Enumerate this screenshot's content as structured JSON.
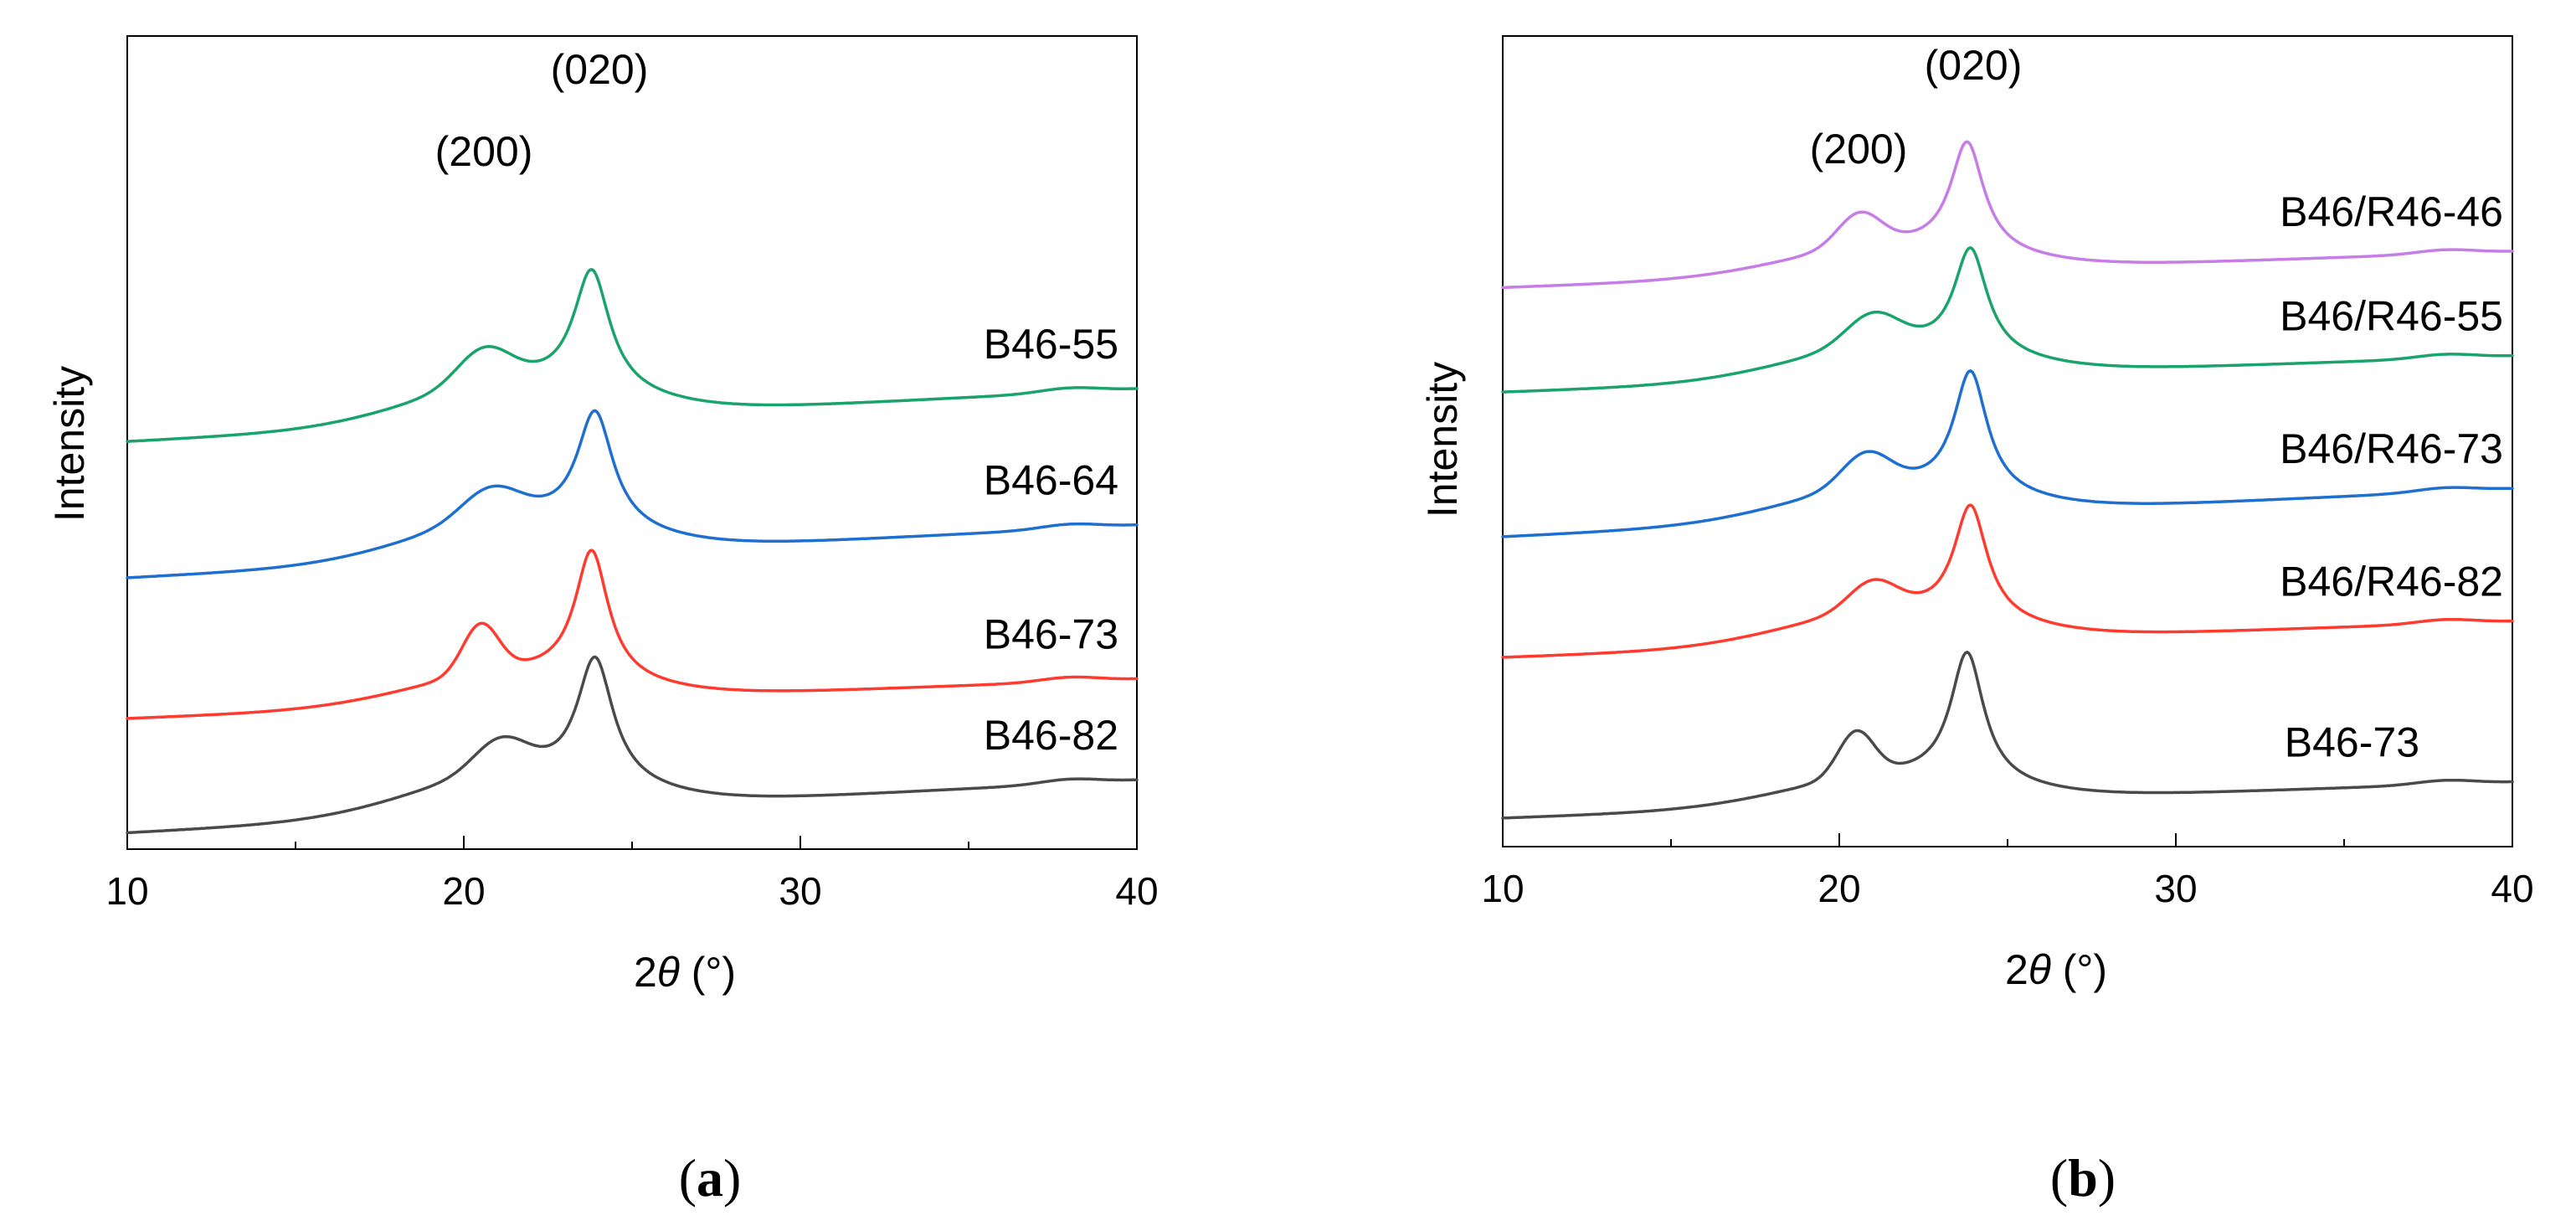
{
  "chart_data": [
    {
      "type": "line",
      "panel_label": "a",
      "xlabel_symbol": "θ",
      "xlabel": "2θ (°)",
      "xlabel_prefix": "2",
      "xlabel_suffix": " (°)",
      "ylabel": "Intensity",
      "xlim": [
        10,
        40
      ],
      "xticks": [
        10,
        20,
        30,
        40
      ],
      "xtick_labels": [
        "10",
        "20",
        "30",
        "40"
      ],
      "grid": false,
      "annotations": [
        {
          "text": "(020)",
          "x": 23.9
        },
        {
          "text": "(200)",
          "x": 20.8
        }
      ],
      "series": [
        {
          "name": "B46-55",
          "color": "#1aa36b",
          "offset": 4.1,
          "base": 0.0,
          "slope": 0.002,
          "p200": 0.38,
          "p200x": 20.6,
          "w200": 1.1,
          "p020": 1.35,
          "p020x": 23.8,
          "w020": 0.65,
          "amorph": 0.45
        },
        {
          "name": "B46-64",
          "color": "#1f6fd1",
          "offset": 2.55,
          "base": 0.0,
          "slope": 0.002,
          "p200": 0.33,
          "p200x": 20.8,
          "w200": 1.2,
          "p020": 1.3,
          "p020x": 23.9,
          "w020": 0.65,
          "amorph": 0.45
        },
        {
          "name": "B46-73",
          "color": "#ff3b30",
          "offset": 0.95,
          "base": 0.0,
          "slope": 0.0015,
          "p200": 0.55,
          "p200x": 20.5,
          "w200": 0.75,
          "p020": 1.45,
          "p020x": 23.8,
          "w020": 0.6,
          "amorph": 0.35
        },
        {
          "name": "B46-82",
          "color": "#4a4a4a",
          "offset": -0.35,
          "base": 0.0,
          "slope": 0.002,
          "p200": 0.35,
          "p200x": 21.1,
          "w200": 1.1,
          "p020": 1.4,
          "p020x": 23.9,
          "w020": 0.65,
          "amorph": 0.45
        }
      ]
    },
    {
      "type": "line",
      "panel_label": "b",
      "xlabel_symbol": "θ",
      "xlabel": "2θ (°)",
      "xlabel_prefix": "2",
      "xlabel_suffix": " (°)",
      "ylabel": "Intensity",
      "xlim": [
        10,
        40
      ],
      "xticks": [
        10,
        20,
        30,
        40
      ],
      "xtick_labels": [
        "10",
        "20",
        "30",
        "40"
      ],
      "grid": false,
      "annotations": [
        {
          "text": "(020)",
          "x": 23.9
        },
        {
          "text": "(200)",
          "x": 20.8
        }
      ],
      "series": [
        {
          "name": "B46/R46-46",
          "color": "#c77de6",
          "offset": 5.15,
          "base": 0.0,
          "slope": 0.0015,
          "p200": 0.4,
          "p200x": 20.6,
          "w200": 0.9,
          "p020": 1.35,
          "p020x": 23.8,
          "w020": 0.6,
          "amorph": 0.35
        },
        {
          "name": "B46/R46-55",
          "color": "#1aa36b",
          "offset": 3.85,
          "base": 0.0,
          "slope": 0.0015,
          "p200": 0.38,
          "p200x": 21.0,
          "w200": 1.1,
          "p020": 1.3,
          "p020x": 23.9,
          "w020": 0.6,
          "amorph": 0.4
        },
        {
          "name": "B46/R46-73",
          "color": "#1f6fd1",
          "offset": 2.05,
          "base": 0.0,
          "slope": 0.002,
          "p200": 0.4,
          "p200x": 20.8,
          "w200": 1.0,
          "p020": 1.5,
          "p020x": 23.9,
          "w020": 0.6,
          "amorph": 0.4
        },
        {
          "name": "B46/R46-82",
          "color": "#ff3b30",
          "offset": 0.55,
          "base": 0.0,
          "slope": 0.0015,
          "p200": 0.35,
          "p200x": 21.0,
          "w200": 1.0,
          "p020": 1.4,
          "p020x": 23.9,
          "w020": 0.6,
          "amorph": 0.4
        },
        {
          "name": "B46-73",
          "color": "#4a4a4a",
          "offset": -1.45,
          "base": 0.0,
          "slope": 0.0015,
          "p200": 0.55,
          "p200x": 20.5,
          "w200": 0.75,
          "p020": 1.6,
          "p020x": 23.8,
          "w020": 0.6,
          "amorph": 0.35
        }
      ]
    }
  ]
}
